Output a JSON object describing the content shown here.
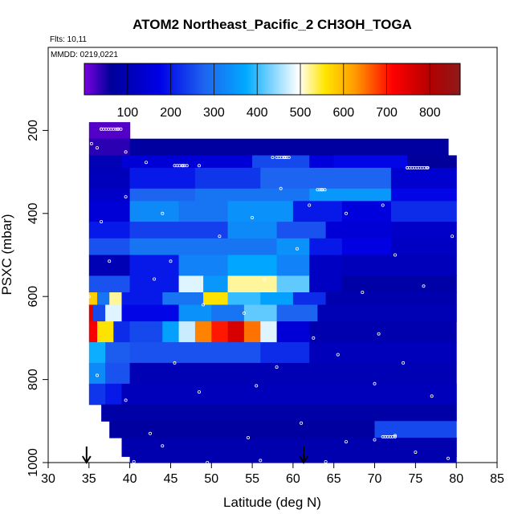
{
  "chart_data": {
    "type": "heatmap",
    "title": "ATOM2 Northeast_Pacific_2 CH3OH_TOGA",
    "flights_label": "Flts: 10,11",
    "mmdd_label": "MMDD: 0219,0221",
    "xlabel": "Latitude (deg N)",
    "ylabel": "PSXC (mbar)",
    "xlim": [
      30,
      85
    ],
    "ylim": [
      1000,
      0
    ],
    "x_ticks": [
      "30",
      "35",
      "40",
      "45",
      "50",
      "55",
      "60",
      "65",
      "70",
      "75",
      "80",
      "85"
    ],
    "y_ticks": [
      "200",
      "400",
      "600",
      "800",
      "1000"
    ],
    "colorbar": {
      "range": [
        0,
        870
      ],
      "ticks": [
        "100",
        "200",
        "300",
        "400",
        "500",
        "600",
        "700",
        "800"
      ],
      "colors": [
        "#7b00e0",
        "#00009a",
        "#0000e6",
        "#1e64f0",
        "#00aaff",
        "#ffffff",
        "#ffe600",
        "#ff9b00",
        "#ff0000",
        "#b40000",
        "#8c1a1a"
      ]
    },
    "grid": false,
    "legend": "colorbar-top",
    "arrows_lat": [
      34.7,
      61.3
    ],
    "bands": [
      {
        "p": [
          180,
          220
        ],
        "segments": [
          [
            35,
            40,
            20
          ]
        ]
      },
      {
        "p": [
          220,
          260
        ],
        "segments": [
          [
            35,
            40,
            40
          ],
          [
            40,
            79,
            70
          ]
        ]
      },
      {
        "p": [
          260,
          290
        ],
        "segments": [
          [
            35,
            39,
            100
          ],
          [
            39,
            55,
            150
          ],
          [
            55,
            62,
            250
          ],
          [
            62,
            65,
            160
          ],
          [
            65,
            74,
            180
          ],
          [
            74,
            80,
            60
          ]
        ]
      },
      {
        "p": [
          290,
          340
        ],
        "segments": [
          [
            35,
            40,
            110
          ],
          [
            40,
            48,
            200
          ],
          [
            48,
            56,
            230
          ],
          [
            56,
            72,
            280
          ],
          [
            72,
            80,
            140
          ]
        ]
      },
      {
        "p": [
          340,
          370
        ],
        "segments": [
          [
            35,
            40,
            130
          ],
          [
            40,
            48,
            280
          ],
          [
            48,
            56,
            300
          ],
          [
            56,
            62,
            300
          ],
          [
            62,
            72,
            350
          ],
          [
            72,
            80,
            180
          ]
        ]
      },
      {
        "p": [
          370,
          420
        ],
        "segments": [
          [
            35,
            40,
            150
          ],
          [
            40,
            46,
            330
          ],
          [
            46,
            52,
            300
          ],
          [
            52,
            60,
            340
          ],
          [
            60,
            66,
            200
          ],
          [
            66,
            72,
            160
          ],
          [
            72,
            80,
            220
          ]
        ]
      },
      {
        "p": [
          420,
          460
        ],
        "segments": [
          [
            35,
            40,
            200
          ],
          [
            40,
            52,
            240
          ],
          [
            52,
            58,
            330
          ],
          [
            58,
            64,
            260
          ],
          [
            64,
            72,
            150
          ],
          [
            72,
            80,
            130
          ]
        ]
      },
      {
        "p": [
          460,
          500
        ],
        "segments": [
          [
            35,
            40,
            260
          ],
          [
            40,
            58,
            300
          ],
          [
            58,
            62,
            340
          ],
          [
            62,
            66,
            200
          ],
          [
            66,
            72,
            170
          ],
          [
            72,
            80,
            120
          ]
        ]
      },
      {
        "p": [
          500,
          550
        ],
        "segments": [
          [
            35,
            40,
            100
          ],
          [
            40,
            46,
            200
          ],
          [
            46,
            52,
            320
          ],
          [
            52,
            58,
            370
          ],
          [
            58,
            62,
            320
          ],
          [
            62,
            66,
            120
          ],
          [
            66,
            80,
            110
          ]
        ]
      },
      {
        "p": [
          550,
          590
        ],
        "segments": [
          [
            35,
            40,
            260
          ],
          [
            40,
            46,
            200
          ],
          [
            46,
            49,
            480
          ],
          [
            49,
            52,
            350
          ],
          [
            52,
            58,
            520
          ],
          [
            58,
            62,
            420
          ],
          [
            62,
            66,
            120
          ],
          [
            66,
            80,
            80
          ]
        ]
      },
      {
        "p": [
          590,
          620
        ],
        "segments": [
          [
            35,
            36,
            580
          ],
          [
            36,
            37.5,
            300
          ],
          [
            37.5,
            39,
            520
          ],
          [
            39,
            44,
            200
          ],
          [
            44,
            49,
            300
          ],
          [
            49,
            52,
            560
          ],
          [
            52,
            56,
            400
          ],
          [
            56,
            60,
            360
          ],
          [
            60,
            64,
            220
          ],
          [
            64,
            80,
            90
          ]
        ]
      },
      {
        "p": [
          620,
          660
        ],
        "segments": [
          [
            35,
            35.5,
            750
          ],
          [
            35.5,
            37,
            250
          ],
          [
            37,
            39,
            480
          ],
          [
            39,
            46,
            180
          ],
          [
            46,
            50,
            340
          ],
          [
            50,
            54,
            300
          ],
          [
            54,
            58,
            420
          ],
          [
            58,
            63,
            280
          ],
          [
            63,
            80,
            100
          ]
        ]
      },
      {
        "p": [
          660,
          710
        ],
        "segments": [
          [
            35,
            36,
            720
          ],
          [
            36,
            38,
            560
          ],
          [
            38,
            40,
            220
          ],
          [
            40,
            44,
            250
          ],
          [
            44,
            46,
            360
          ],
          [
            46,
            48,
            470
          ],
          [
            48,
            50,
            640
          ],
          [
            50,
            52,
            700
          ],
          [
            52,
            54,
            760
          ],
          [
            54,
            56,
            650
          ],
          [
            56,
            58,
            480
          ],
          [
            58,
            62,
            150
          ],
          [
            62,
            80,
            90
          ]
        ]
      },
      {
        "p": [
          710,
          760
        ],
        "segments": [
          [
            35,
            37,
            380
          ],
          [
            37,
            40,
            270
          ],
          [
            40,
            56,
            260
          ],
          [
            56,
            62,
            220
          ],
          [
            62,
            80,
            110
          ]
        ]
      },
      {
        "p": [
          760,
          810
        ],
        "segments": [
          [
            35,
            37,
            330
          ],
          [
            37,
            40,
            260
          ],
          [
            40,
            80,
            100
          ]
        ]
      },
      {
        "p": [
          810,
          860
        ],
        "segments": [
          [
            35,
            37,
            230
          ],
          [
            37,
            39,
            200
          ],
          [
            39,
            80,
            110
          ]
        ]
      },
      {
        "p": [
          860,
          900
        ],
        "segments": [
          [
            36.5,
            80,
            80
          ]
        ]
      },
      {
        "p": [
          900,
          940
        ],
        "segments": [
          [
            37.5,
            70,
            70
          ],
          [
            70,
            80,
            250
          ]
        ]
      },
      {
        "p": [
          940,
          985
        ],
        "segments": [
          [
            39,
            80,
            90
          ]
        ]
      },
      {
        "p": [
          985,
          1000
        ],
        "segments": [
          [
            40,
            80,
            90
          ]
        ]
      }
    ],
    "points": [
      {
        "x": 36.5,
        "y": 197
      },
      {
        "x": 38.5,
        "y": 197
      },
      {
        "x": 35.3,
        "y": 232
      },
      {
        "x": 36.0,
        "y": 242
      },
      {
        "x": 39.5,
        "y": 252
      },
      {
        "x": 42.0,
        "y": 277
      },
      {
        "x": 46.5,
        "y": 285
      },
      {
        "x": 48.5,
        "y": 285
      },
      {
        "x": 57.5,
        "y": 265
      },
      {
        "x": 59.0,
        "y": 265
      },
      {
        "x": 63.5,
        "y": 343
      },
      {
        "x": 76.5,
        "y": 290
      },
      {
        "x": 74.0,
        "y": 290
      },
      {
        "x": 62.0,
        "y": 380
      },
      {
        "x": 55.0,
        "y": 410
      },
      {
        "x": 44.0,
        "y": 400
      },
      {
        "x": 36.5,
        "y": 420
      },
      {
        "x": 39.5,
        "y": 360
      },
      {
        "x": 71.0,
        "y": 380
      },
      {
        "x": 79.5,
        "y": 455
      },
      {
        "x": 51.0,
        "y": 455
      },
      {
        "x": 58.5,
        "y": 340
      },
      {
        "x": 66.5,
        "y": 400
      },
      {
        "x": 72.5,
        "y": 500
      },
      {
        "x": 60.5,
        "y": 485
      },
      {
        "x": 45.0,
        "y": 515
      },
      {
        "x": 37.5,
        "y": 515
      },
      {
        "x": 43.0,
        "y": 558
      },
      {
        "x": 56.5,
        "y": 560
      },
      {
        "x": 68.5,
        "y": 590
      },
      {
        "x": 76.0,
        "y": 575
      },
      {
        "x": 35.0,
        "y": 600
      },
      {
        "x": 49.0,
        "y": 620
      },
      {
        "x": 54.0,
        "y": 640
      },
      {
        "x": 62.5,
        "y": 700
      },
      {
        "x": 70.5,
        "y": 690
      },
      {
        "x": 73.5,
        "y": 760
      },
      {
        "x": 65.5,
        "y": 740
      },
      {
        "x": 58.0,
        "y": 770
      },
      {
        "x": 45.5,
        "y": 760
      },
      {
        "x": 36.0,
        "y": 790
      },
      {
        "x": 34.7,
        "y": 830
      },
      {
        "x": 39.5,
        "y": 850
      },
      {
        "x": 48.5,
        "y": 830
      },
      {
        "x": 55.5,
        "y": 815
      },
      {
        "x": 70.0,
        "y": 810
      },
      {
        "x": 77.0,
        "y": 840
      },
      {
        "x": 61.0,
        "y": 905
      },
      {
        "x": 70.0,
        "y": 945
      },
      {
        "x": 72.5,
        "y": 935
      },
      {
        "x": 66.5,
        "y": 950
      },
      {
        "x": 54.5,
        "y": 940
      },
      {
        "x": 44.0,
        "y": 960
      },
      {
        "x": 49.5,
        "y": 1000
      },
      {
        "x": 56.0,
        "y": 995
      },
      {
        "x": 64.0,
        "y": 998
      },
      {
        "x": 40.5,
        "y": 998
      },
      {
        "x": 75.0,
        "y": 975
      },
      {
        "x": 79.0,
        "y": 990
      },
      {
        "x": 42.5,
        "y": 930
      }
    ],
    "point_runs": [
      {
        "x0": 36.5,
        "x1": 39.0,
        "y": 197
      },
      {
        "x0": 45.5,
        "x1": 47.0,
        "y": 285
      },
      {
        "x0": 58.0,
        "x1": 59.5,
        "y": 265
      },
      {
        "x0": 63.0,
        "x1": 64.0,
        "y": 343
      },
      {
        "x0": 74.0,
        "x1": 76.5,
        "y": 290
      },
      {
        "x0": 71.0,
        "x1": 72.5,
        "y": 938
      }
    ]
  }
}
